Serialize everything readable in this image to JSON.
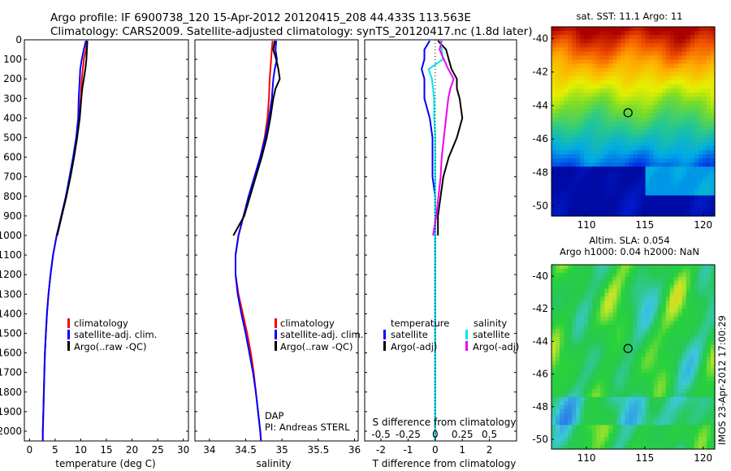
{
  "header": {
    "line1": "Argo profile: IF 6900738_120 15-Apr-2012 20120415_208 44.433S 113.563E",
    "line2": "Climatology: CARS2009. Satellite-adjusted climatology: synTS_20120417.nc (1.8d later)"
  },
  "colors": {
    "climatology": "#ff0000",
    "satellite": "#0000ff",
    "argo": "#000000",
    "satellite_salinity": "#00e5ee",
    "argo_salinity": "#ee00ee"
  },
  "chart_data": [
    {
      "type": "line",
      "panel": "temperature",
      "xlabel": "temperature (deg C)",
      "ylabel": "",
      "xlim": [
        -1,
        31
      ],
      "ylim": [
        2050,
        0
      ],
      "xticks": [
        0,
        5,
        10,
        15,
        20,
        25,
        30
      ],
      "yticks": [
        0,
        100,
        200,
        300,
        400,
        500,
        600,
        700,
        800,
        900,
        1000,
        1100,
        1200,
        1300,
        1400,
        1500,
        1600,
        1700,
        1800,
        1900,
        2000
      ],
      "legend": [
        "climatology",
        "satellite-adj. clim.",
        "Argo(..raw -QC)"
      ],
      "series": [
        {
          "name": "climatology",
          "color": "#ff0000",
          "depth": [
            5,
            50,
            100,
            150,
            200,
            300,
            400,
            500,
            600,
            700,
            800,
            900,
            1000,
            1100,
            1200,
            1300,
            1400,
            1500,
            1600,
            1700,
            1800,
            1900,
            2000,
            2050
          ],
          "values": [
            11.2,
            11.0,
            10.6,
            10.4,
            10.2,
            10.0,
            9.7,
            9.2,
            8.6,
            7.9,
            7.1,
            6.2,
            5.3,
            4.6,
            4.1,
            3.7,
            3.4,
            3.2,
            3.0,
            2.9,
            2.8,
            2.7,
            2.6,
            2.6
          ]
        },
        {
          "name": "satellite-adj. clim.",
          "color": "#0000ff",
          "depth": [
            5,
            50,
            100,
            150,
            200,
            300,
            400,
            500,
            600,
            700,
            800,
            900,
            1000,
            1100,
            1200,
            1300,
            1400,
            1500,
            1600,
            1700,
            1800,
            1900,
            2000,
            2050
          ],
          "values": [
            11.0,
            10.6,
            10.2,
            9.9,
            9.8,
            9.6,
            9.5,
            9.1,
            8.5,
            7.8,
            7.1,
            6.2,
            5.3,
            4.6,
            4.1,
            3.7,
            3.4,
            3.2,
            3.0,
            2.9,
            2.8,
            2.7,
            2.6,
            2.6
          ]
        },
        {
          "name": "Argo(..raw -QC)",
          "color": "#000000",
          "depth": [
            5,
            50,
            100,
            150,
            200,
            250,
            300,
            400,
            500,
            600,
            700,
            800,
            900,
            1000
          ],
          "values": [
            11.3,
            11.2,
            11.1,
            10.9,
            10.6,
            10.3,
            10.1,
            9.8,
            9.3,
            8.7,
            8.0,
            7.2,
            6.3,
            5.4
          ]
        }
      ]
    },
    {
      "type": "line",
      "panel": "salinity",
      "xlabel": "salinity",
      "ylabel": "",
      "xlim": [
        33.8,
        36.05
      ],
      "ylim": [
        2050,
        0
      ],
      "xticks": [
        34,
        34.5,
        35,
        35.5,
        36
      ],
      "xticklabels": [
        "34",
        "34.5",
        "35",
        "35.5",
        "36"
      ],
      "legend": [
        "climatology",
        "satellite-adj. clim.",
        "Argo(..raw -QC)"
      ],
      "series": [
        {
          "name": "climatology",
          "color": "#ff0000",
          "depth": [
            5,
            50,
            100,
            150,
            200,
            300,
            400,
            500,
            600,
            700,
            800,
            900,
            1000,
            1100,
            1200,
            1300,
            1400,
            1500,
            1600,
            1700,
            1800,
            1900,
            2000,
            2050
          ],
          "values": [
            34.87,
            34.86,
            34.85,
            34.84,
            34.83,
            34.82,
            34.8,
            34.76,
            34.7,
            34.62,
            34.54,
            34.47,
            34.4,
            34.36,
            34.36,
            34.4,
            34.46,
            34.52,
            34.57,
            34.61,
            34.64,
            34.67,
            34.7,
            34.71
          ]
        },
        {
          "name": "satellite-adj. clim.",
          "color": "#0000ff",
          "depth": [
            5,
            50,
            100,
            150,
            200,
            300,
            400,
            500,
            600,
            700,
            800,
            900,
            1000,
            1100,
            1200,
            1300,
            1400,
            1500,
            1600,
            1700,
            1800,
            1900,
            2000,
            2050
          ],
          "values": [
            34.92,
            34.91,
            34.93,
            34.9,
            34.88,
            34.86,
            34.82,
            34.77,
            34.7,
            34.62,
            34.54,
            34.47,
            34.4,
            34.36,
            34.36,
            34.39,
            34.44,
            34.5,
            34.55,
            34.6,
            34.64,
            34.67,
            34.7,
            34.71
          ]
        },
        {
          "name": "Argo(..raw -QC)",
          "color": "#000000",
          "depth": [
            5,
            50,
            100,
            150,
            200,
            250,
            300,
            400,
            500,
            600,
            700,
            800,
            900,
            1000
          ],
          "values": [
            34.9,
            34.88,
            34.92,
            34.95,
            34.97,
            34.91,
            34.88,
            34.84,
            34.79,
            34.72,
            34.64,
            34.56,
            34.48,
            34.33
          ]
        }
      ]
    },
    {
      "type": "line",
      "panel": "difference",
      "xlabel": "T difference from climatology",
      "xlabel_top": "S difference from climatology",
      "xlim": [
        -2.6,
        3.0
      ],
      "ylim": [
        2050,
        0
      ],
      "xticks": [
        -2,
        -1,
        0,
        1,
        2
      ],
      "top_ticks": [
        "-0.5",
        "-0.25",
        "0",
        "0.25",
        "0.5"
      ],
      "legend_titles": [
        "temperature",
        "salinity"
      ],
      "legend": [
        "satellite",
        "Argo(-adj)",
        "satellite",
        "Argo(-adj)"
      ],
      "series": [
        {
          "name": "satellite",
          "group": "temperature",
          "color": "#0000ff",
          "depth": [
            5,
            50,
            100,
            150,
            200,
            300,
            400,
            500,
            600,
            700,
            800,
            900,
            1000,
            1200,
            1500,
            2000,
            2050
          ],
          "values": [
            -0.2,
            -0.4,
            -0.4,
            -0.5,
            -0.4,
            -0.4,
            -0.2,
            -0.1,
            -0.1,
            -0.1,
            0.0,
            0.0,
            0.0,
            0.0,
            0.0,
            0.0,
            0.0
          ]
        },
        {
          "name": "Argo(-adj)",
          "group": "temperature",
          "color": "#000000",
          "depth": [
            5,
            50,
            100,
            150,
            200,
            250,
            300,
            400,
            500,
            600,
            700,
            800,
            900,
            1000
          ],
          "values": [
            0.1,
            0.4,
            0.5,
            0.6,
            0.8,
            0.8,
            0.9,
            1.0,
            0.8,
            0.5,
            0.3,
            0.2,
            0.1,
            0.1
          ]
        },
        {
          "name": "satellite",
          "group": "salinity",
          "color": "#00e5ee",
          "depth": [
            5,
            50,
            100,
            150,
            200,
            300,
            400,
            500,
            700,
            1000,
            1500,
            2000,
            2050
          ],
          "values": [
            0.05,
            0.06,
            0.07,
            -0.06,
            -0.03,
            -0.01,
            -0.01,
            0.0,
            0.0,
            0.0,
            0.0,
            0.0,
            0.0
          ]
        },
        {
          "name": "Argo(-adj)",
          "group": "salinity",
          "color": "#ee00ee",
          "depth": [
            5,
            50,
            100,
            150,
            200,
            250,
            300,
            400,
            500,
            600,
            700,
            800,
            900,
            1000
          ],
          "values": [
            0.06,
            0.04,
            0.08,
            0.12,
            0.17,
            0.14,
            0.12,
            0.1,
            0.08,
            0.06,
            0.05,
            0.03,
            0.01,
            -0.02
          ]
        }
      ]
    },
    {
      "type": "heatmap",
      "panel": "sst-map",
      "title": "sat. SST: 11.1  Argo: 11",
      "xticks": [
        110,
        115,
        120
      ],
      "yticks": [
        -40,
        -42,
        -44,
        -46,
        -48,
        -50
      ],
      "xlim": [
        107,
        121
      ],
      "ylim": [
        -50.6,
        -39.3
      ],
      "marker": {
        "lon": 113.563,
        "lat": -44.433
      }
    },
    {
      "type": "heatmap",
      "panel": "sla-map",
      "title_line1": "Altim. SLA: 0.054",
      "title_line2": "Argo h1000: 0.04 h2000: NaN",
      "xticks": [
        110,
        115,
        120
      ],
      "yticks": [
        -40,
        -42,
        -44,
        -46,
        -48,
        -50
      ],
      "xlim": [
        107,
        121
      ],
      "ylim": [
        -50.6,
        -39.3
      ],
      "marker": {
        "lon": 113.563,
        "lat": -44.433
      }
    }
  ],
  "annotations": {
    "dap": "DAP",
    "pi": "PI: Andreas STERL",
    "stamp": "IMOS 23-Apr-2012 17:00:29"
  }
}
